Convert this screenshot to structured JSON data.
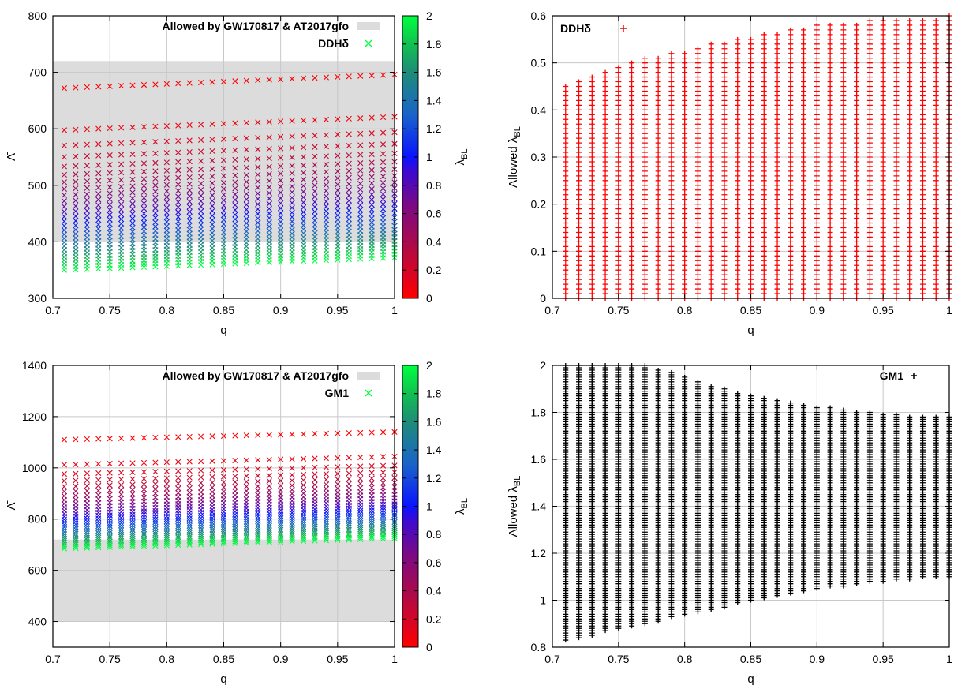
{
  "chart_data": [
    {
      "type": "scatter",
      "panel": "top-left",
      "xlabel": "q",
      "ylabel": "Λ̄",
      "xlim": [
        0.7,
        1.0
      ],
      "ylim": [
        300,
        800
      ],
      "xticks": [
        0.7,
        0.75,
        0.8,
        0.85,
        0.9,
        0.95,
        1
      ],
      "yticks": [
        300,
        400,
        500,
        600,
        700,
        800
      ],
      "grid": true,
      "legend_position": "top-right",
      "legend": [
        {
          "label": "Allowed by GW170817 & AT2017gfo",
          "kind": "band"
        },
        {
          "label": "DDHδ",
          "kind": "marker-x"
        }
      ],
      "allowed_band": [
        400,
        720
      ],
      "colorbar": {
        "label": "λ_BL",
        "range": [
          0,
          2
        ],
        "ticks": [
          0,
          0.2,
          0.4,
          0.6,
          0.8,
          1,
          1.2,
          1.4,
          1.6,
          1.8,
          2
        ],
        "colors": [
          "#ff0000",
          "#9b0a5a",
          "#5a0aa5",
          "#0a14ff",
          "#1a64c8",
          "#16b450",
          "#00ff40"
        ]
      },
      "series": [
        {
          "x_start": 0.71,
          "x_step": 0.01,
          "x_count": 30,
          "lambda_bar_at_lambda_bl_0": [
            672,
            696
          ],
          "lambda_bar_at_lambda_bl_2": [
            350,
            372
          ],
          "lambda_bl_max": 2.0
        }
      ]
    },
    {
      "type": "scatter",
      "panel": "top-right",
      "xlabel": "q",
      "ylabel": "Allowed λ_BL",
      "xlim": [
        0.7,
        1.0
      ],
      "ylim": [
        0,
        0.6
      ],
      "xticks": [
        0.7,
        0.75,
        0.8,
        0.85,
        0.9,
        0.95,
        1
      ],
      "yticks": [
        0,
        0.1,
        0.2,
        0.3,
        0.4,
        0.5,
        0.6
      ],
      "grid": true,
      "legend_position": "top-left",
      "legend": [
        {
          "label": "DDHδ",
          "kind": "marker-plus",
          "color": "#ff0000"
        }
      ],
      "series": [
        {
          "name": "DDHδ",
          "color": "#ff0000",
          "x": [
            0.71,
            0.72,
            0.73,
            0.74,
            0.75,
            0.76,
            0.77,
            0.78,
            0.79,
            0.8,
            0.81,
            0.82,
            0.83,
            0.84,
            0.85,
            0.86,
            0.87,
            0.88,
            0.89,
            0.9,
            0.91,
            0.92,
            0.93,
            0.94,
            0.95,
            0.96,
            0.97,
            0.98,
            0.99,
            1.0
          ],
          "y_min": [
            0,
            0,
            0,
            0,
            0,
            0,
            0,
            0,
            0,
            0,
            0,
            0,
            0,
            0,
            0,
            0,
            0,
            0,
            0,
            0,
            0,
            0,
            0,
            0,
            0,
            0,
            0,
            0,
            0,
            0
          ],
          "y_max": [
            0.455,
            0.465,
            0.475,
            0.485,
            0.495,
            0.505,
            0.51,
            0.515,
            0.525,
            0.525,
            0.53,
            0.54,
            0.545,
            0.55,
            0.555,
            0.56,
            0.565,
            0.57,
            0.575,
            0.58,
            0.58,
            0.585,
            0.585,
            0.59,
            0.59,
            0.595,
            0.595,
            0.595,
            0.595,
            0.6
          ],
          "y_step": 0.01
        }
      ]
    },
    {
      "type": "scatter",
      "panel": "bottom-left",
      "xlabel": "q",
      "ylabel": "Λ̄",
      "xlim": [
        0.7,
        1.0
      ],
      "ylim": [
        300,
        1400
      ],
      "xticks": [
        0.7,
        0.75,
        0.8,
        0.85,
        0.9,
        0.95,
        1
      ],
      "yticks": [
        400,
        600,
        800,
        1000,
        1200,
        1400
      ],
      "grid": true,
      "legend_position": "top-right",
      "legend": [
        {
          "label": "Allowed by GW170817 & AT2017gfo",
          "kind": "band"
        },
        {
          "label": "GM1",
          "kind": "marker-x"
        }
      ],
      "allowed_band": [
        400,
        720
      ],
      "colorbar": {
        "label": "λ_BL",
        "range": [
          0,
          2
        ],
        "ticks": [
          0,
          0.2,
          0.4,
          0.6,
          0.8,
          1,
          1.2,
          1.4,
          1.6,
          1.8,
          2
        ],
        "colors": [
          "#ff0000",
          "#9b0a5a",
          "#5a0aa5",
          "#0a14ff",
          "#1a64c8",
          "#16b450",
          "#00ff40"
        ]
      },
      "series": [
        {
          "x_start": 0.71,
          "x_step": 0.01,
          "x_count": 30,
          "lambda_bar_at_lambda_bl_0": [
            1110,
            1140
          ],
          "lambda_bar_at_lambda_bl_2": [
            685,
            725
          ],
          "lambda_bl_max": 2.0
        }
      ]
    },
    {
      "type": "scatter",
      "panel": "bottom-right",
      "xlabel": "q",
      "ylabel": "Allowed λ_BL",
      "xlim": [
        0.7,
        1.0
      ],
      "ylim": [
        0.8,
        2.0
      ],
      "xticks": [
        0.7,
        0.75,
        0.8,
        0.85,
        0.9,
        0.95,
        1
      ],
      "yticks": [
        0.8,
        1,
        1.2,
        1.4,
        1.6,
        1.8,
        2
      ],
      "grid": true,
      "legend_position": "top-right",
      "legend": [
        {
          "label": "GM1",
          "kind": "marker-plus",
          "color": "#000000"
        }
      ],
      "series": [
        {
          "name": "GM1",
          "color": "#000000",
          "x": [
            0.71,
            0.72,
            0.73,
            0.74,
            0.75,
            0.76,
            0.77,
            0.78,
            0.79,
            0.8,
            0.81,
            0.82,
            0.83,
            0.84,
            0.85,
            0.86,
            0.87,
            0.88,
            0.89,
            0.9,
            0.91,
            0.92,
            0.93,
            0.94,
            0.95,
            0.96,
            0.97,
            0.98,
            0.99,
            1.0
          ],
          "y_min": [
            0.83,
            0.84,
            0.85,
            0.87,
            0.88,
            0.89,
            0.9,
            0.91,
            0.93,
            0.94,
            0.95,
            0.96,
            0.97,
            0.99,
            1.0,
            1.01,
            1.02,
            1.03,
            1.04,
            1.05,
            1.06,
            1.06,
            1.07,
            1.08,
            1.08,
            1.09,
            1.09,
            1.1,
            1.1,
            1.1
          ],
          "y_max": [
            2.0,
            2.0,
            2.0,
            2.0,
            2.0,
            2.0,
            2.0,
            1.98,
            1.97,
            1.95,
            1.93,
            1.91,
            1.9,
            1.88,
            1.87,
            1.86,
            1.85,
            1.84,
            1.83,
            1.82,
            1.82,
            1.81,
            1.8,
            1.8,
            1.79,
            1.79,
            1.78,
            1.78,
            1.78,
            1.78
          ],
          "y_step": 0.01
        }
      ]
    }
  ]
}
